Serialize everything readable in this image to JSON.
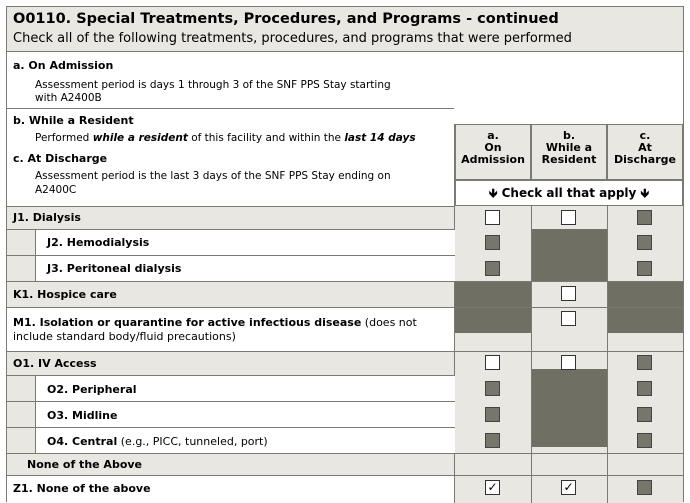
{
  "header": {
    "title": "O0110.  Special Treatments, Procedures, and Programs - continued",
    "subtitle": "Check all of the following treatments, procedures, and programs that were performed"
  },
  "periods": {
    "a_label": "a. On Admission",
    "a_desc_1": "Assessment period is days 1 through 3 of the SNF PPS Stay starting",
    "a_desc_2": "with A2400B",
    "b_label": "b. While a Resident",
    "b_desc_pre": "Performed ",
    "b_desc_em1": "while a resident",
    "b_desc_mid": " of this facility and within the ",
    "b_desc_em2": "last 14 days",
    "c_label": "c. At Discharge",
    "c_desc_1": "Assessment period is the last 3 days of the SNF PPS Stay ending on",
    "c_desc_2": "A2400C"
  },
  "columns": {
    "a": [
      "a.",
      "On",
      "Admission"
    ],
    "b": [
      "b.",
      "While a",
      "Resident"
    ],
    "c": [
      "c.",
      "At",
      "Discharge"
    ],
    "check_all": "🡻 Check all that apply 🡻"
  },
  "rows": {
    "j1": "J1. Dialysis",
    "j2": "J2. Hemodialysis",
    "j3": "J3. Peritoneal dialysis",
    "k1": "K1. Hospice care",
    "m1_bold": "M1. Isolation or quarantine for active infectious disease",
    "m1_rest": " (does not",
    "m1_line2": "include standard body/fluid precautions)",
    "o1": "O1. IV Access",
    "o2": "O2. Peripheral",
    "o3": "O3. Midline",
    "o4_bold": "O4. Central",
    "o4_rest": " (e.g., PICC, tunneled, port)",
    "none_header": "None of the Above",
    "z1": "Z1. None of the above"
  },
  "checks": {
    "z1_a": "✓",
    "z1_b": "✓"
  }
}
